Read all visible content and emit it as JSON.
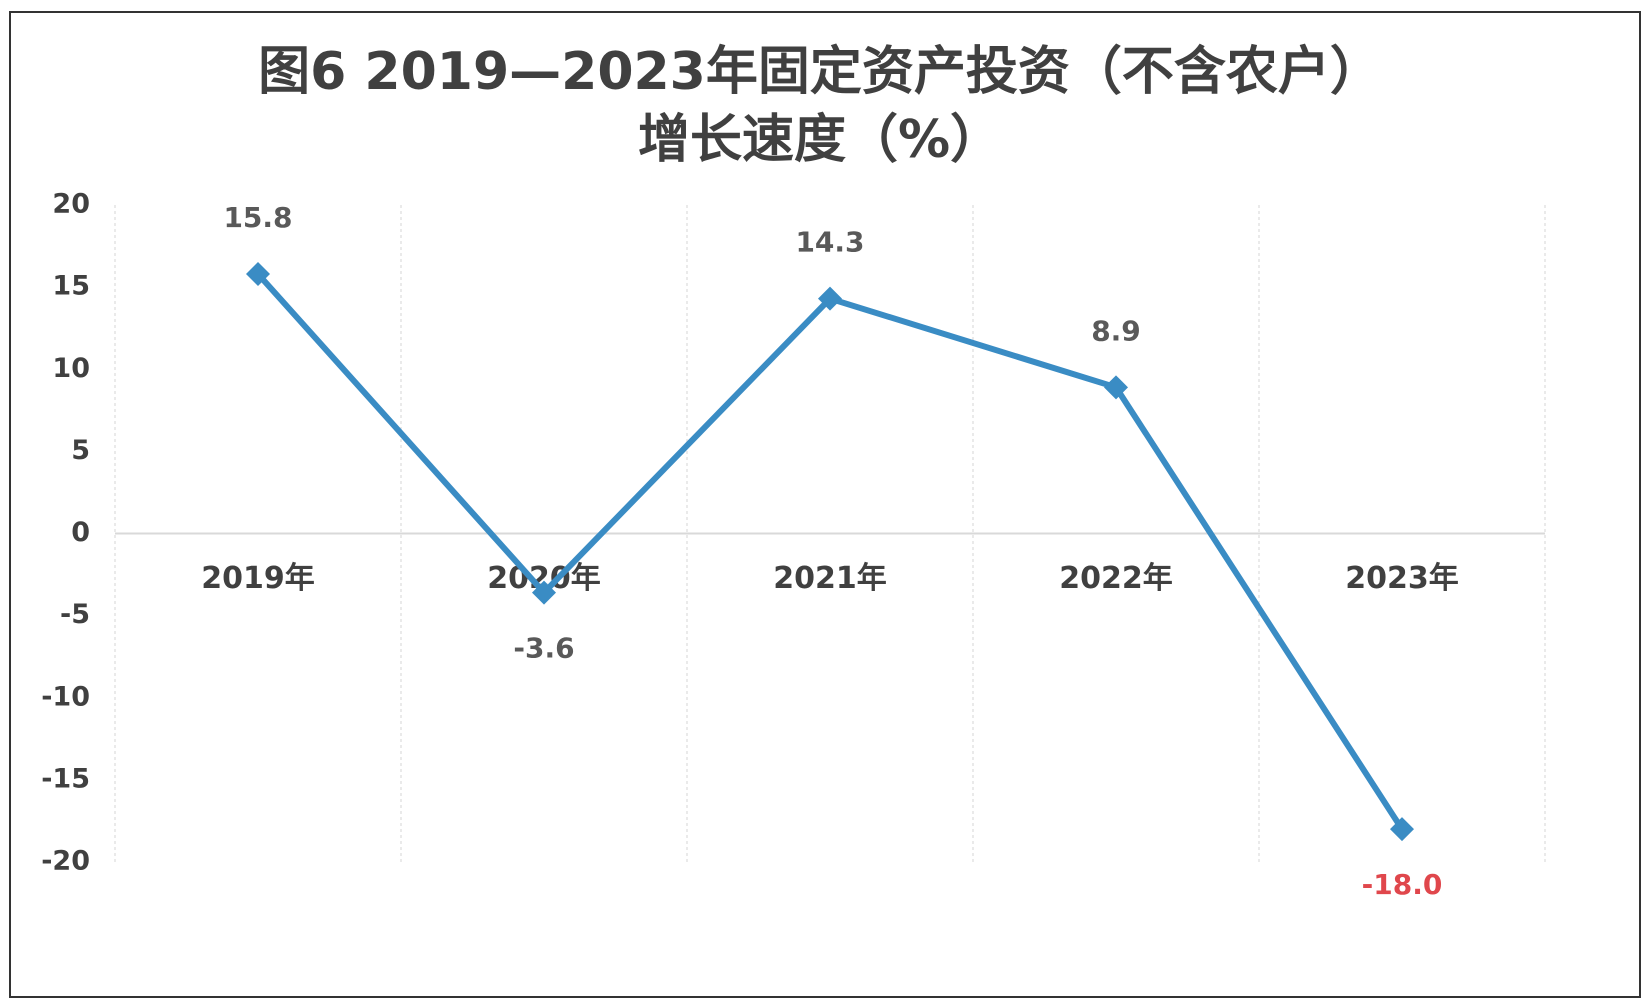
{
  "chart_data": {
    "type": "line",
    "title": [
      "图6 2019—2023年固定资产投资（不含农户）",
      "增长速度（%）"
    ],
    "categories": [
      "2019年",
      "2020年",
      "2021年",
      "2022年",
      "2023年"
    ],
    "series": [
      {
        "name": "增长速度",
        "color": "#3a8cc4",
        "values": [
          15.8,
          -3.6,
          14.3,
          8.9,
          -18.0
        ],
        "value_labels": [
          "15.8",
          "-3.6",
          "14.3",
          "8.9",
          "-18.0"
        ],
        "value_label_colors": [
          "#595959",
          "#595959",
          "#595959",
          "#595959",
          "#e0474c"
        ]
      }
    ],
    "ylim": [
      -20,
      20
    ],
    "yticks": [
      -20,
      -15,
      -10,
      -5,
      0,
      5,
      10,
      15,
      20
    ],
    "grid": true
  }
}
